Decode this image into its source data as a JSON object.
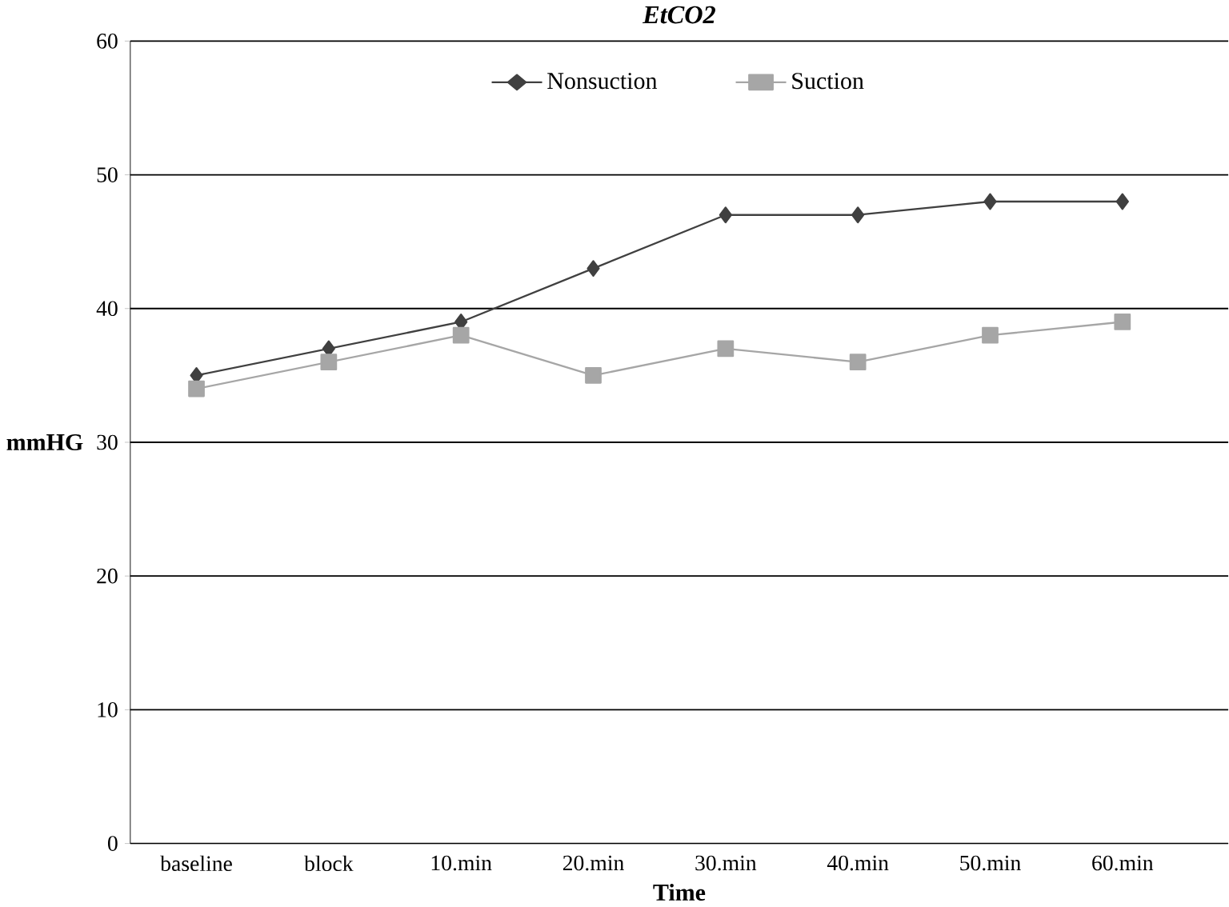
{
  "chart_data": {
    "type": "line",
    "title": "EtCO2",
    "xlabel": "Time",
    "ylabel": "mmHG",
    "categories": [
      "baseline",
      "block",
      "10.min",
      "20.min",
      "30.min",
      "40.min",
      "50.min",
      "60.min"
    ],
    "series": [
      {
        "name": "Nonsuction",
        "color": "#404040",
        "marker": "diamond",
        "values": [
          35,
          37,
          39,
          43,
          47,
          47,
          48,
          48
        ]
      },
      {
        "name": "Suction",
        "color": "#a6a6a6",
        "marker": "square",
        "values": [
          34,
          36,
          38,
          35,
          37,
          36,
          38,
          39
        ]
      }
    ],
    "ylim": [
      0,
      60
    ],
    "yticks": [
      0,
      10,
      20,
      30,
      40,
      50,
      60
    ],
    "grid": "y",
    "legend": "top"
  }
}
